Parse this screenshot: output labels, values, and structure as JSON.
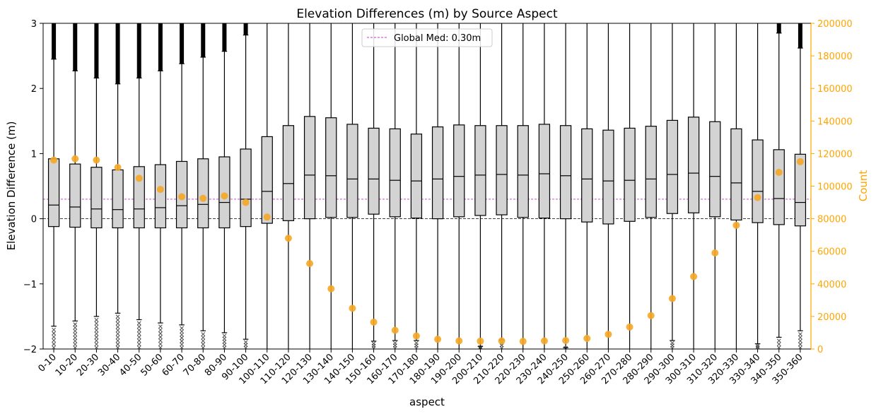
{
  "chart_data": {
    "type": "box",
    "title": "Elevation Differences (m) by Source Aspect",
    "xlabel": "aspect",
    "ylabel": "Elevation Difference (m)",
    "y2label": "Count",
    "ylim": [
      -2,
      3
    ],
    "y2lim": [
      0,
      200000
    ],
    "yticks": [
      -2,
      -1,
      0,
      1,
      2,
      3
    ],
    "yticklabels": [
      "−2",
      "−1",
      "0",
      "1",
      "2",
      "3"
    ],
    "y2ticks": [
      0,
      20000,
      40000,
      60000,
      80000,
      100000,
      120000,
      140000,
      160000,
      180000,
      200000
    ],
    "y2ticklabels": [
      "0",
      "20000",
      "40000",
      "60000",
      "80000",
      "100000",
      "120000",
      "140000",
      "160000",
      "180000",
      "200000"
    ],
    "global_median": 0.3,
    "legend": {
      "label": "Global Med: 0.30m",
      "position": "top-center"
    },
    "colors": {
      "box_fill": "#d3d3d3",
      "count_marker": "#f5a623",
      "count_axis": "#ffa500",
      "median_line": "#cc33cc",
      "zero_line": "#000000"
    },
    "categories": [
      "0-10",
      "10-20",
      "20-30",
      "30-40",
      "40-50",
      "50-60",
      "60-70",
      "70-80",
      "80-90",
      "90-100",
      "100-110",
      "110-120",
      "120-130",
      "130-140",
      "140-150",
      "150-160",
      "160-170",
      "170-180",
      "180-190",
      "190-200",
      "200-210",
      "210-220",
      "220-230",
      "230-240",
      "240-250",
      "250-260",
      "260-270",
      "270-280",
      "280-290",
      "290-300",
      "300-310",
      "310-320",
      "320-330",
      "330-340",
      "340-350",
      "350-360"
    ],
    "boxes": [
      {
        "q1": -0.12,
        "median": 0.21,
        "q3": 0.92,
        "whisker_low": -1.65,
        "whisker_high": 2.45
      },
      {
        "q1": -0.13,
        "median": 0.18,
        "q3": 0.84,
        "whisker_low": -1.57,
        "whisker_high": 2.27
      },
      {
        "q1": -0.14,
        "median": 0.15,
        "q3": 0.79,
        "whisker_low": -1.5,
        "whisker_high": 2.16
      },
      {
        "q1": -0.14,
        "median": 0.14,
        "q3": 0.75,
        "whisker_low": -1.45,
        "whisker_high": 2.07
      },
      {
        "q1": -0.14,
        "median": 0.15,
        "q3": 0.8,
        "whisker_low": -1.55,
        "whisker_high": 2.16
      },
      {
        "q1": -0.14,
        "median": 0.17,
        "q3": 0.83,
        "whisker_low": -1.6,
        "whisker_high": 2.27
      },
      {
        "q1": -0.14,
        "median": 0.2,
        "q3": 0.88,
        "whisker_low": -1.63,
        "whisker_high": 2.38
      },
      {
        "q1": -0.14,
        "median": 0.22,
        "q3": 0.92,
        "whisker_low": -1.72,
        "whisker_high": 2.48
      },
      {
        "q1": -0.14,
        "median": 0.25,
        "q3": 0.95,
        "whisker_low": -1.75,
        "whisker_high": 2.57
      },
      {
        "q1": -0.12,
        "median": 0.3,
        "q3": 1.07,
        "whisker_low": -1.85,
        "whisker_high": 2.82
      },
      {
        "q1": -0.07,
        "median": 0.42,
        "q3": 1.26,
        "whisker_low": -2.0,
        "whisker_high": 3.0
      },
      {
        "q1": -0.03,
        "median": 0.54,
        "q3": 1.43,
        "whisker_low": -2.0,
        "whisker_high": 3.0
      },
      {
        "q1": 0.0,
        "median": 0.67,
        "q3": 1.57,
        "whisker_low": -2.0,
        "whisker_high": 3.0
      },
      {
        "q1": 0.02,
        "median": 0.66,
        "q3": 1.55,
        "whisker_low": -2.0,
        "whisker_high": 3.0
      },
      {
        "q1": 0.02,
        "median": 0.61,
        "q3": 1.45,
        "whisker_low": -2.0,
        "whisker_high": 3.0
      },
      {
        "q1": 0.07,
        "median": 0.61,
        "q3": 1.39,
        "whisker_low": -1.88,
        "whisker_high": 3.0
      },
      {
        "q1": 0.03,
        "median": 0.59,
        "q3": 1.38,
        "whisker_low": -1.87,
        "whisker_high": 3.0
      },
      {
        "q1": 0.01,
        "median": 0.58,
        "q3": 1.3,
        "whisker_low": -1.87,
        "whisker_high": 3.0
      },
      {
        "q1": 0.0,
        "median": 0.61,
        "q3": 1.41,
        "whisker_low": -2.0,
        "whisker_high": 3.0
      },
      {
        "q1": 0.03,
        "median": 0.65,
        "q3": 1.44,
        "whisker_low": -2.0,
        "whisker_high": 3.0
      },
      {
        "q1": 0.05,
        "median": 0.67,
        "q3": 1.43,
        "whisker_low": -1.96,
        "whisker_high": 3.0
      },
      {
        "q1": 0.06,
        "median": 0.68,
        "q3": 1.43,
        "whisker_low": -1.86,
        "whisker_high": 3.0
      },
      {
        "q1": 0.02,
        "median": 0.67,
        "q3": 1.43,
        "whisker_low": -2.0,
        "whisker_high": 3.0
      },
      {
        "q1": 0.01,
        "median": 0.69,
        "q3": 1.45,
        "whisker_low": -2.0,
        "whisker_high": 3.0
      },
      {
        "q1": 0.0,
        "median": 0.66,
        "q3": 1.43,
        "whisker_low": -1.98,
        "whisker_high": 3.0
      },
      {
        "q1": -0.05,
        "median": 0.61,
        "q3": 1.38,
        "whisker_low": -2.0,
        "whisker_high": 3.0
      },
      {
        "q1": -0.08,
        "median": 0.58,
        "q3": 1.36,
        "whisker_low": -2.0,
        "whisker_high": 3.0
      },
      {
        "q1": -0.04,
        "median": 0.59,
        "q3": 1.39,
        "whisker_low": -2.0,
        "whisker_high": 3.0
      },
      {
        "q1": 0.02,
        "median": 0.61,
        "q3": 1.42,
        "whisker_low": -2.0,
        "whisker_high": 3.0
      },
      {
        "q1": 0.08,
        "median": 0.68,
        "q3": 1.51,
        "whisker_low": -1.87,
        "whisker_high": 3.0
      },
      {
        "q1": 0.09,
        "median": 0.7,
        "q3": 1.56,
        "whisker_low": -2.0,
        "whisker_high": 3.0
      },
      {
        "q1": 0.03,
        "median": 0.65,
        "q3": 1.49,
        "whisker_low": -2.0,
        "whisker_high": 3.0
      },
      {
        "q1": -0.02,
        "median": 0.55,
        "q3": 1.38,
        "whisker_low": -2.0,
        "whisker_high": 3.0
      },
      {
        "q1": -0.06,
        "median": 0.42,
        "q3": 1.21,
        "whisker_low": -1.92,
        "whisker_high": 3.0
      },
      {
        "q1": -0.09,
        "median": 0.31,
        "q3": 1.06,
        "whisker_low": -1.82,
        "whisker_high": 2.85
      },
      {
        "q1": -0.11,
        "median": 0.25,
        "q3": 0.99,
        "whisker_low": -1.72,
        "whisker_high": 2.62
      }
    ],
    "counts": [
      116000,
      116800,
      116000,
      111500,
      104800,
      98000,
      93500,
      92500,
      94000,
      90000,
      81000,
      68000,
      52500,
      37000,
      25000,
      16500,
      11500,
      8000,
      6000,
      5000,
      4800,
      5000,
      4700,
      5000,
      5200,
      6500,
      9000,
      13500,
      20500,
      31000,
      44500,
      59000,
      76000,
      93000,
      108500,
      115000
    ]
  }
}
